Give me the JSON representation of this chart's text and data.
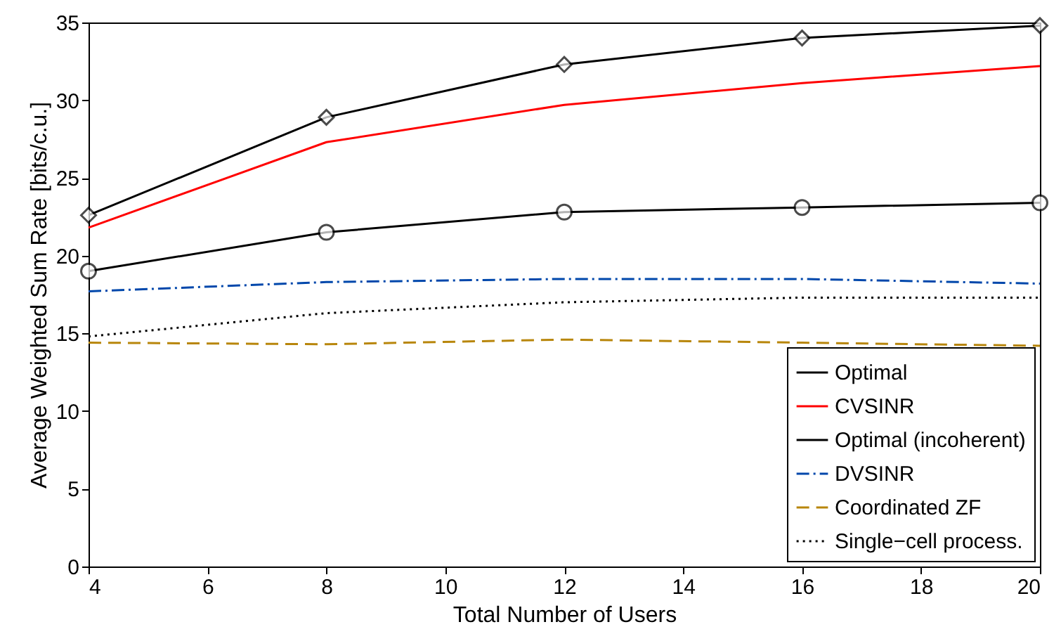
{
  "chart_data": {
    "type": "line",
    "xlabel": "Total Number of Users",
    "ylabel": "Average Weighted Sum Rate [bits/c.u.]",
    "x": [
      4,
      8,
      12,
      16,
      20
    ],
    "series": [
      {
        "name": "Optimal",
        "color": "#000000",
        "values": [
          22.6,
          28.9,
          32.3,
          34.0,
          34.8
        ],
        "marker": "diamond",
        "line_style": "solid"
      },
      {
        "name": "CVSINR",
        "color": "#ff0000",
        "values": [
          21.8,
          27.3,
          29.7,
          31.1,
          32.2
        ],
        "marker": "none",
        "line_style": "solid"
      },
      {
        "name": "Optimal (incoherent)",
        "color": "#000000",
        "values": [
          19.0,
          21.5,
          22.8,
          23.1,
          23.4
        ],
        "marker": "circle",
        "line_style": "solid"
      },
      {
        "name": "DVSINR",
        "color": "#0047ab",
        "values": [
          17.7,
          18.3,
          18.5,
          18.5,
          18.2
        ],
        "marker": "none",
        "line_style": "dashdot"
      },
      {
        "name": "Coordinated ZF",
        "color": "#b8860b",
        "values": [
          14.4,
          14.3,
          14.6,
          14.4,
          14.2
        ],
        "marker": "none",
        "line_style": "dashed"
      },
      {
        "name": "Single−cell process.",
        "color": "#000000",
        "values": [
          14.8,
          16.3,
          17.0,
          17.3,
          17.3
        ],
        "marker": "none",
        "line_style": "dotted"
      }
    ],
    "xlim": [
      4,
      20
    ],
    "xticks": [
      4,
      6,
      8,
      10,
      12,
      14,
      16,
      18,
      20
    ],
    "ylim": [
      0,
      35
    ],
    "yticks": [
      0,
      5,
      10,
      15,
      20,
      25,
      30,
      35
    ],
    "grid": false,
    "legend": "bottom right"
  }
}
